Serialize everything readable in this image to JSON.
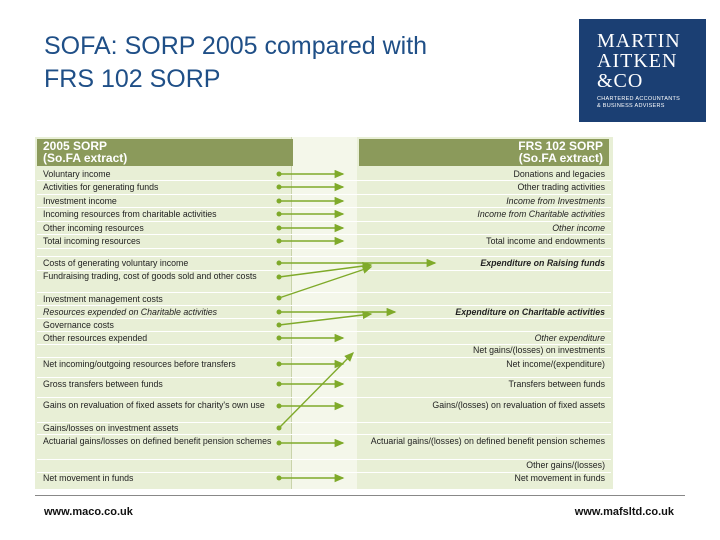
{
  "title": {
    "line1": "SOFA: SORP 2005 compared with",
    "line2": "FRS 102 SORP"
  },
  "logo": {
    "l1": "MARTIN",
    "l2": "AITKEN",
    "l3": "&CO",
    "l4": "CHARTERED ACCOUNTANTS",
    "l5": "& BUSINESS ADVISERS"
  },
  "headers": {
    "left": {
      "line1": "2005 SORP",
      "line2": "(So.FA extract)"
    },
    "right": {
      "line1": "FRS 102 SORP",
      "line2": "(So.FA extract)"
    }
  },
  "left_rows": [
    "Voluntary income",
    "Activities for generating funds",
    "Investment income",
    "Incoming resources from charitable activities",
    "Other incoming resources",
    "Total incoming resources",
    "Costs of generating voluntary income",
    "Fundraising trading, cost of goods sold and other costs",
    "Investment management costs",
    "Resources expended on Charitable activities",
    "Governance costs",
    "Other resources expended",
    "Net incoming/outgoing resources before transfers",
    "Gross transfers between funds",
    "Gains on revaluation of fixed assets for charity's own use",
    "Gains/losses on investment assets",
    "Actuarial gains/losses on defined benefit pension schemes",
    "Net movement in funds"
  ],
  "right_rows": [
    "Donations and legacies",
    "Other trading activities",
    "Income from Investments",
    "Income from Charitable activities",
    "Other income",
    "Total income and endowments",
    "Expenditure on Raising funds",
    "Expenditure on Charitable activities",
    "Other expenditure",
    "Net gains/(losses) on investments",
    "Net income/(expenditure)",
    "Transfers between funds",
    "Gains/(losses) on revaluation of fixed assets",
    "Actuarial gains/(losses) on defined benefit pension schemes",
    "Other gains/(losses)",
    "Net movement in funds"
  ],
  "footer": {
    "left": "www.maco.co.uk",
    "right": "www.mafsltd.co.uk"
  },
  "colors": {
    "header": "#8b9a5b",
    "arrow": "#7faa2a",
    "title": "#1f4f87",
    "logo": "#1b3f73"
  }
}
